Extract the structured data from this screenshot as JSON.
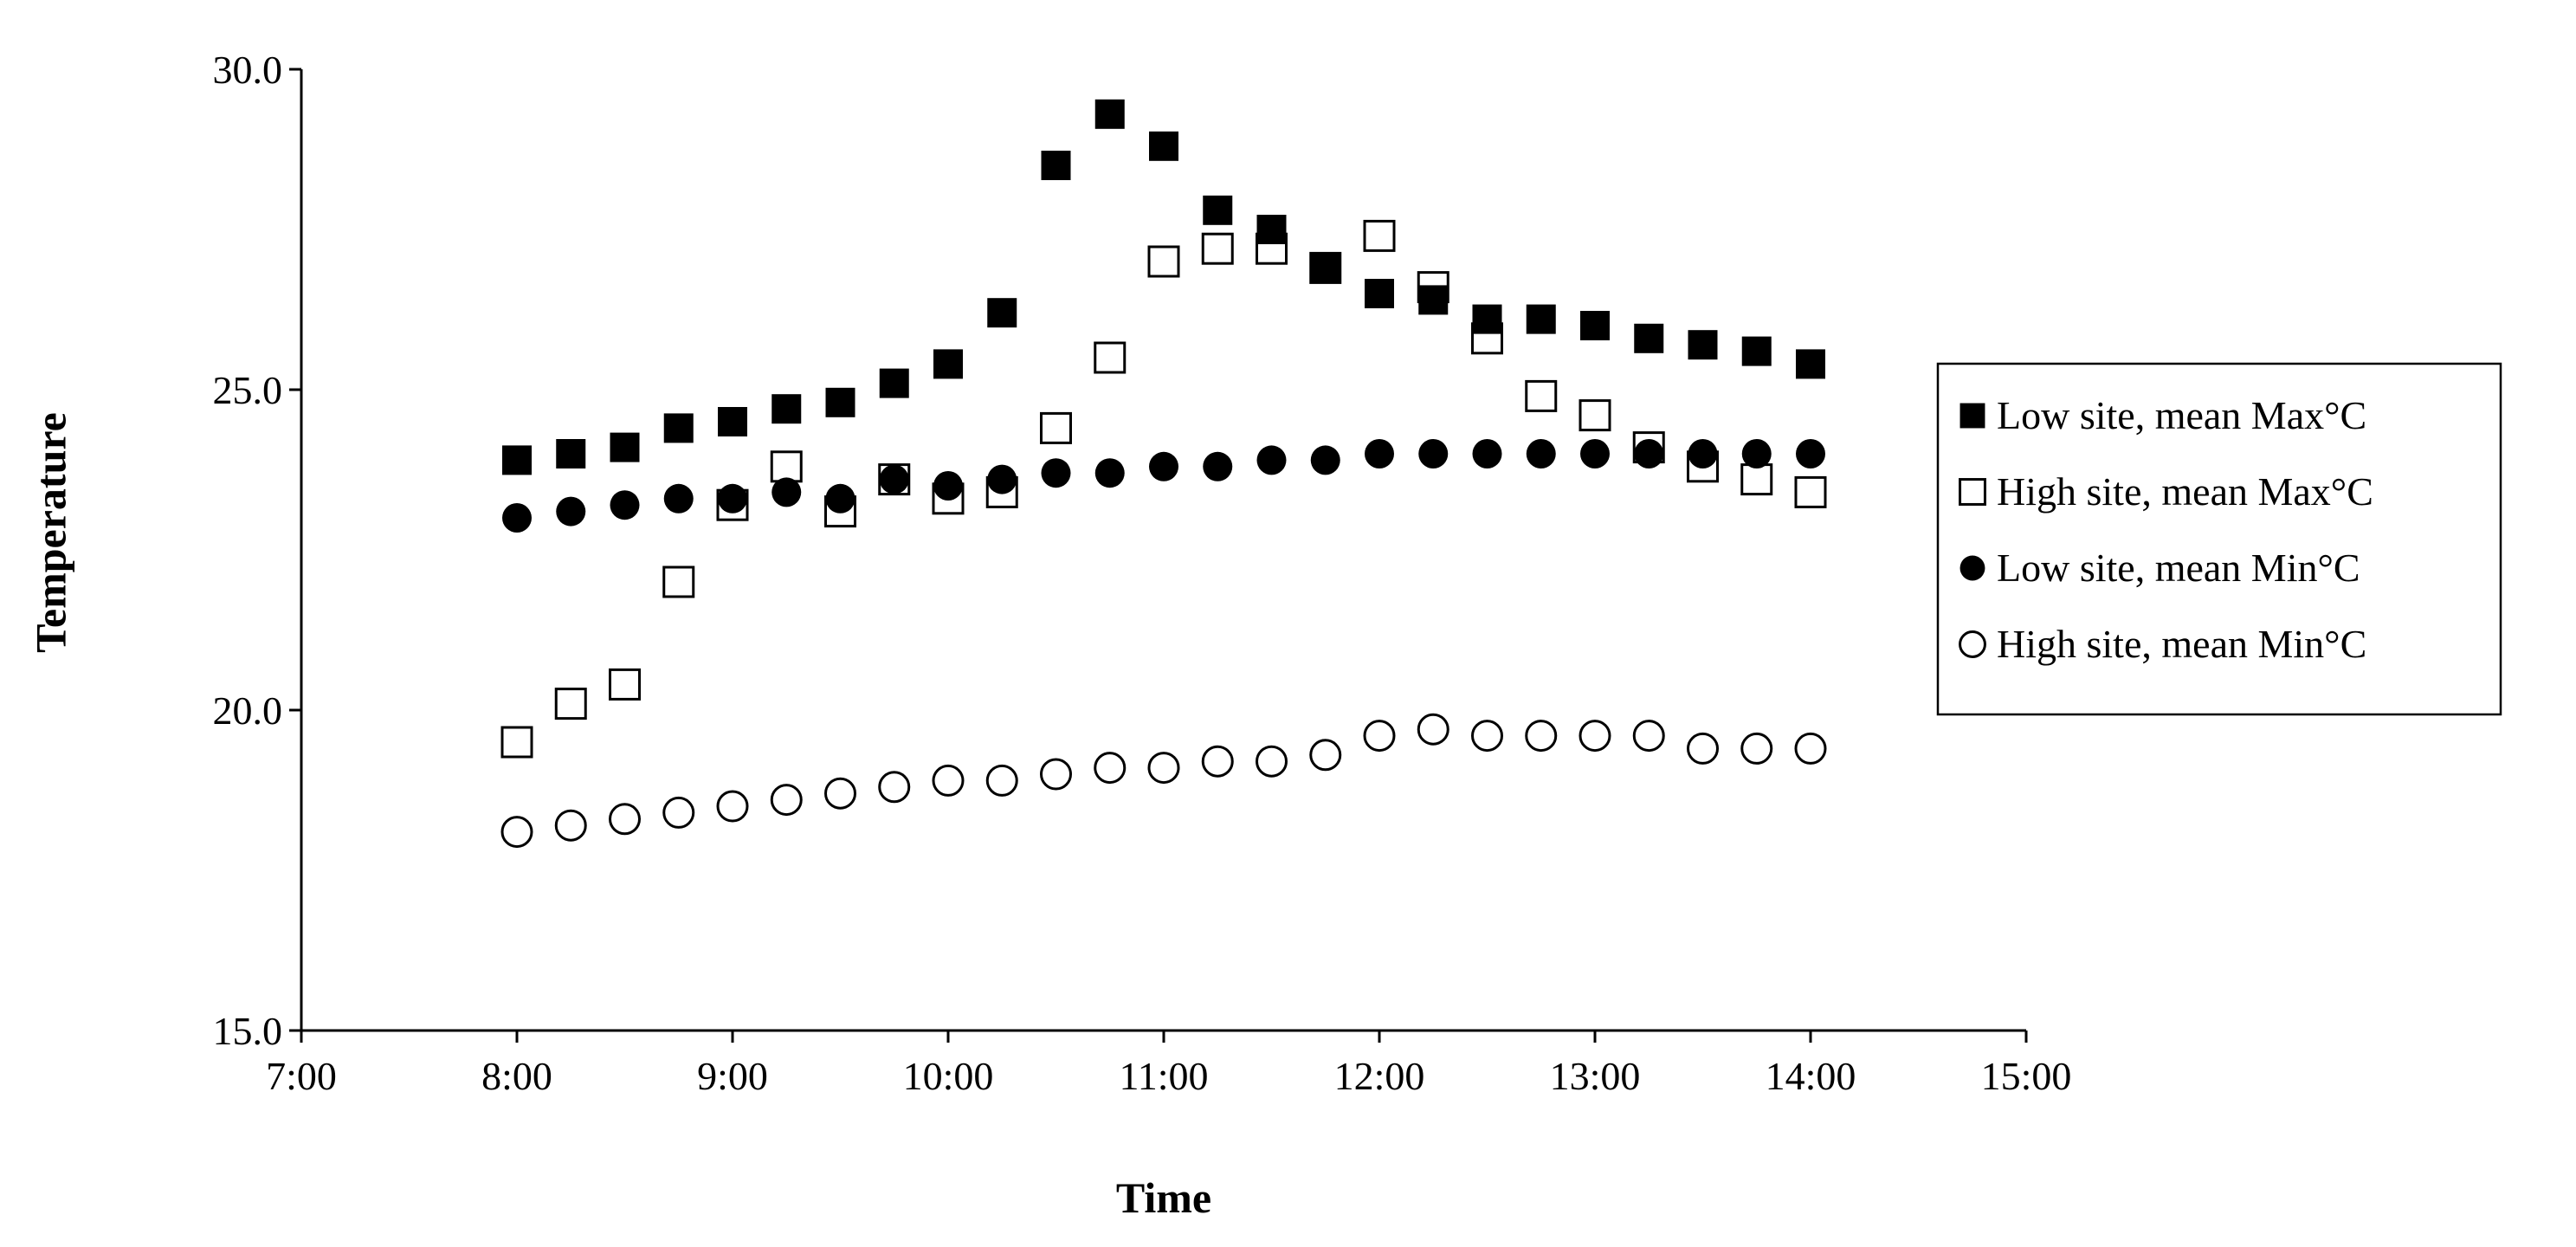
{
  "chart_data": {
    "type": "scatter",
    "title": "",
    "xlabel": "Time",
    "ylabel": "Temperature",
    "xlim": [
      "7:00",
      "15:00"
    ],
    "ylim": [
      15.0,
      30.0
    ],
    "x_ticks": [
      "7:00",
      "8:00",
      "9:00",
      "10:00",
      "11:00",
      "12:00",
      "13:00",
      "14:00",
      "15:00"
    ],
    "y_ticks": [
      "15.0",
      "20.0",
      "25.0",
      "30.0"
    ],
    "grid": false,
    "legend_position": "right",
    "x": [
      "8:00",
      "8:15",
      "8:30",
      "8:45",
      "9:00",
      "9:15",
      "9:30",
      "9:45",
      "10:00",
      "10:15",
      "10:30",
      "10:45",
      "11:00",
      "11:15",
      "11:30",
      "11:45",
      "12:00",
      "12:15",
      "12:30",
      "12:45",
      "13:00",
      "13:15",
      "13:30",
      "13:45",
      "14:00"
    ],
    "series": [
      {
        "name": "Low site, mean Max°C",
        "marker": "square-filled",
        "values": [
          23.9,
          24.0,
          24.1,
          24.4,
          24.5,
          24.7,
          24.8,
          25.1,
          25.4,
          26.2,
          28.5,
          29.3,
          28.8,
          27.8,
          27.5,
          26.9,
          26.5,
          26.4,
          26.1,
          26.1,
          26.0,
          25.8,
          25.7,
          25.6,
          25.4
        ]
      },
      {
        "name": "High site, mean Max°C",
        "marker": "square-open",
        "values": [
          19.5,
          20.1,
          20.4,
          22.0,
          23.2,
          23.8,
          23.1,
          23.6,
          23.3,
          23.4,
          24.4,
          25.5,
          27.0,
          27.2,
          27.2,
          26.9,
          27.4,
          26.6,
          25.8,
          24.9,
          24.6,
          24.1,
          23.8,
          23.6,
          23.4
        ]
      },
      {
        "name": "Low site, mean Min°C",
        "marker": "circle-filled",
        "values": [
          23.0,
          23.1,
          23.2,
          23.3,
          23.3,
          23.4,
          23.3,
          23.6,
          23.5,
          23.6,
          23.7,
          23.7,
          23.8,
          23.8,
          23.9,
          23.9,
          24.0,
          24.0,
          24.0,
          24.0,
          24.0,
          24.0,
          24.0,
          24.0,
          24.0
        ]
      },
      {
        "name": "High site, mean Min°C",
        "marker": "circle-open",
        "values": [
          18.1,
          18.2,
          18.3,
          18.4,
          18.5,
          18.6,
          18.7,
          18.8,
          18.9,
          18.9,
          19.0,
          19.1,
          19.1,
          19.2,
          19.2,
          19.3,
          19.6,
          19.7,
          19.6,
          19.6,
          19.6,
          19.6,
          19.4,
          19.4,
          19.4
        ]
      }
    ]
  }
}
